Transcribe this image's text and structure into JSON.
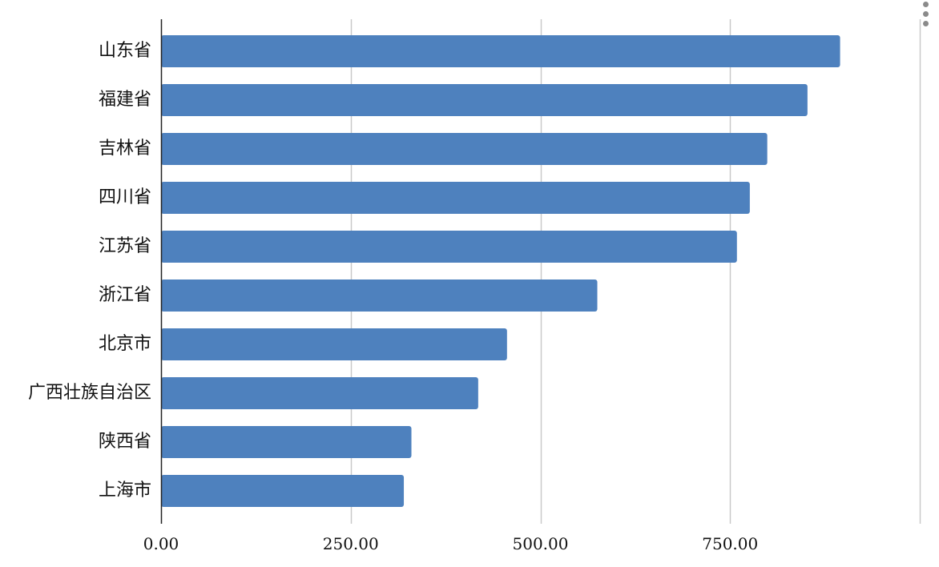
{
  "chart_data": {
    "type": "bar",
    "orientation": "horizontal",
    "categories": [
      "山东省",
      "福建省",
      "吉林省",
      "四川省",
      "江苏省",
      "浙江省",
      "北京市",
      "广西壮族自治区",
      "陕西省",
      "上海市"
    ],
    "values": [
      895,
      852,
      799,
      776,
      759,
      575,
      456,
      418,
      330,
      320
    ],
    "xticks": [
      "0.00",
      "250.00",
      "500.00",
      "750.00"
    ],
    "xlim": [
      0,
      1000
    ],
    "grid": true,
    "bar_color": "#4e81be",
    "title": "",
    "xlabel": "",
    "ylabel": ""
  },
  "menu": {
    "icon": "more-vertical-icon"
  }
}
